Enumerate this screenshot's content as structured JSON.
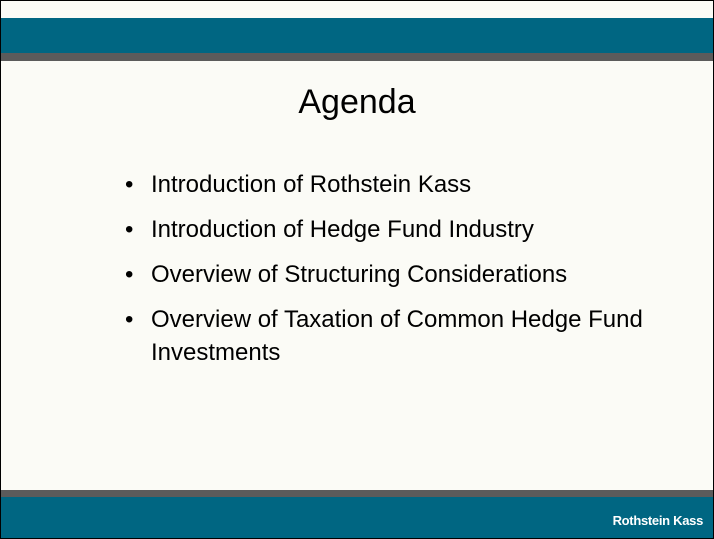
{
  "slide": {
    "title": "Agenda",
    "bullets": [
      "Introduction of Rothstein Kass",
      "Introduction of Hedge Fund Industry",
      "Overview of Structuring Considerations",
      "Overview of Taxation of Common Hedge Fund Investments"
    ],
    "footer": "Rothstein Kass"
  }
}
